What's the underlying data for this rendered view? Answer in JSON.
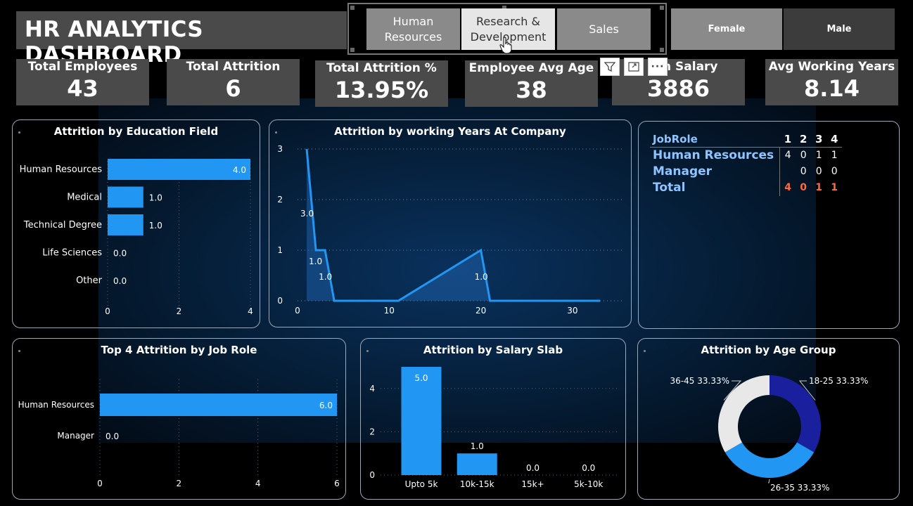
{
  "dashboard": {
    "title": "HR ANALYTICS DASHBOARD"
  },
  "department_slicer": {
    "items": [
      {
        "label": "Human Resources",
        "selected": false
      },
      {
        "label": "Research & Development",
        "selected": true
      },
      {
        "label": "Sales",
        "selected": false
      }
    ]
  },
  "gender_slicer": {
    "items": [
      {
        "label": "Female",
        "color": "#8a8a8a"
      },
      {
        "label": "Male",
        "color": "#3c3c3c"
      }
    ]
  },
  "visual_toolbar": {
    "icons": [
      "filter-icon",
      "focus-mode-icon",
      "more-options-icon"
    ]
  },
  "kpis": [
    {
      "label": "Total Employees",
      "value": "43"
    },
    {
      "label": "Total Attrition",
      "value": "6"
    },
    {
      "label": "Total Attrition %",
      "value": "13.95%"
    },
    {
      "label": "Employee Avg Age",
      "value": "38"
    },
    {
      "label": "n Salary",
      "value": "3886"
    },
    {
      "label": "Avg Working Years",
      "value": "8.14"
    }
  ],
  "colors": {
    "bar": "#2196f3",
    "dark_blue": "#1a1f9e",
    "light_gray": "#e8e8e8",
    "total_red": "#ff6a3d",
    "header_blue": "#8ec4ff"
  },
  "chart_data": [
    {
      "type": "bar",
      "orientation": "horizontal",
      "title": "Attrition by Education Field",
      "categories": [
        "Human Resources",
        "Medical",
        "Technical Degree",
        "Life Sciences",
        "Other"
      ],
      "values": [
        4.0,
        1.0,
        1.0,
        0.0,
        0.0
      ],
      "value_labels": [
        "4.0",
        "1.0",
        "1.0",
        "0.0",
        "0.0"
      ],
      "xlim": [
        0,
        4
      ],
      "xticks": [
        "0",
        "2",
        "4"
      ]
    },
    {
      "type": "area",
      "title": "Attrition by working Years At Company",
      "x": [
        1,
        2,
        3,
        4,
        11,
        20,
        21,
        33
      ],
      "y": [
        3,
        1,
        1,
        0,
        0,
        1,
        0,
        0
      ],
      "point_labels": [
        {
          "x": 1,
          "y": 3,
          "text": "3.0"
        },
        {
          "x": 2,
          "y": 1,
          "text": "1.0"
        },
        {
          "x": 3,
          "y": 1,
          "text": "1.0"
        },
        {
          "x": 20,
          "y": 1,
          "text": "1.0"
        }
      ],
      "xlim": [
        0,
        33
      ],
      "ylim": [
        0,
        3
      ],
      "xticks": [
        "0",
        "10",
        "20",
        "30"
      ],
      "yticks": [
        "0",
        "1",
        "2",
        "3"
      ]
    },
    {
      "type": "table",
      "title": "",
      "columns": [
        "JobRole",
        "1",
        "2",
        "3",
        "4"
      ],
      "rows": [
        {
          "label": "Human Resources",
          "values": [
            "4",
            "0",
            "1",
            "1"
          ]
        },
        {
          "label": "Manager",
          "values": [
            "",
            "0",
            "0",
            "0"
          ]
        }
      ],
      "total": {
        "label": "Total",
        "values": [
          "4",
          "0",
          "1",
          "1"
        ]
      }
    },
    {
      "type": "bar",
      "orientation": "horizontal",
      "title": "Top 4 Attrition by Job Role",
      "categories": [
        "Human Resources",
        "Manager"
      ],
      "values": [
        6.0,
        0.0
      ],
      "value_labels": [
        "6.0",
        "0.0"
      ],
      "xlim": [
        0,
        6
      ],
      "xticks": [
        "0",
        "2",
        "4",
        "6"
      ]
    },
    {
      "type": "bar",
      "orientation": "vertical",
      "title": "Attrition by Salary Slab",
      "categories": [
        "Upto 5k",
        "10k-15k",
        "15k+",
        "5k-10k"
      ],
      "values": [
        5.0,
        1.0,
        0.0,
        0.0
      ],
      "value_labels": [
        "5.0",
        "1.0",
        "0.0",
        "0.0"
      ],
      "ylim": [
        0,
        5
      ],
      "yticks": [
        "0",
        "2",
        "4"
      ]
    },
    {
      "type": "pie",
      "donut": true,
      "title": "Attrition by Age Group",
      "slices": [
        {
          "label": "18-25 33.33%",
          "value": 33.33,
          "color": "#1a1f9e"
        },
        {
          "label": "26-35 33.33%",
          "value": 33.33,
          "color": "#2196f3"
        },
        {
          "label": "36-45 33.33%",
          "value": 33.33,
          "color": "#e8e8e8"
        }
      ]
    }
  ]
}
